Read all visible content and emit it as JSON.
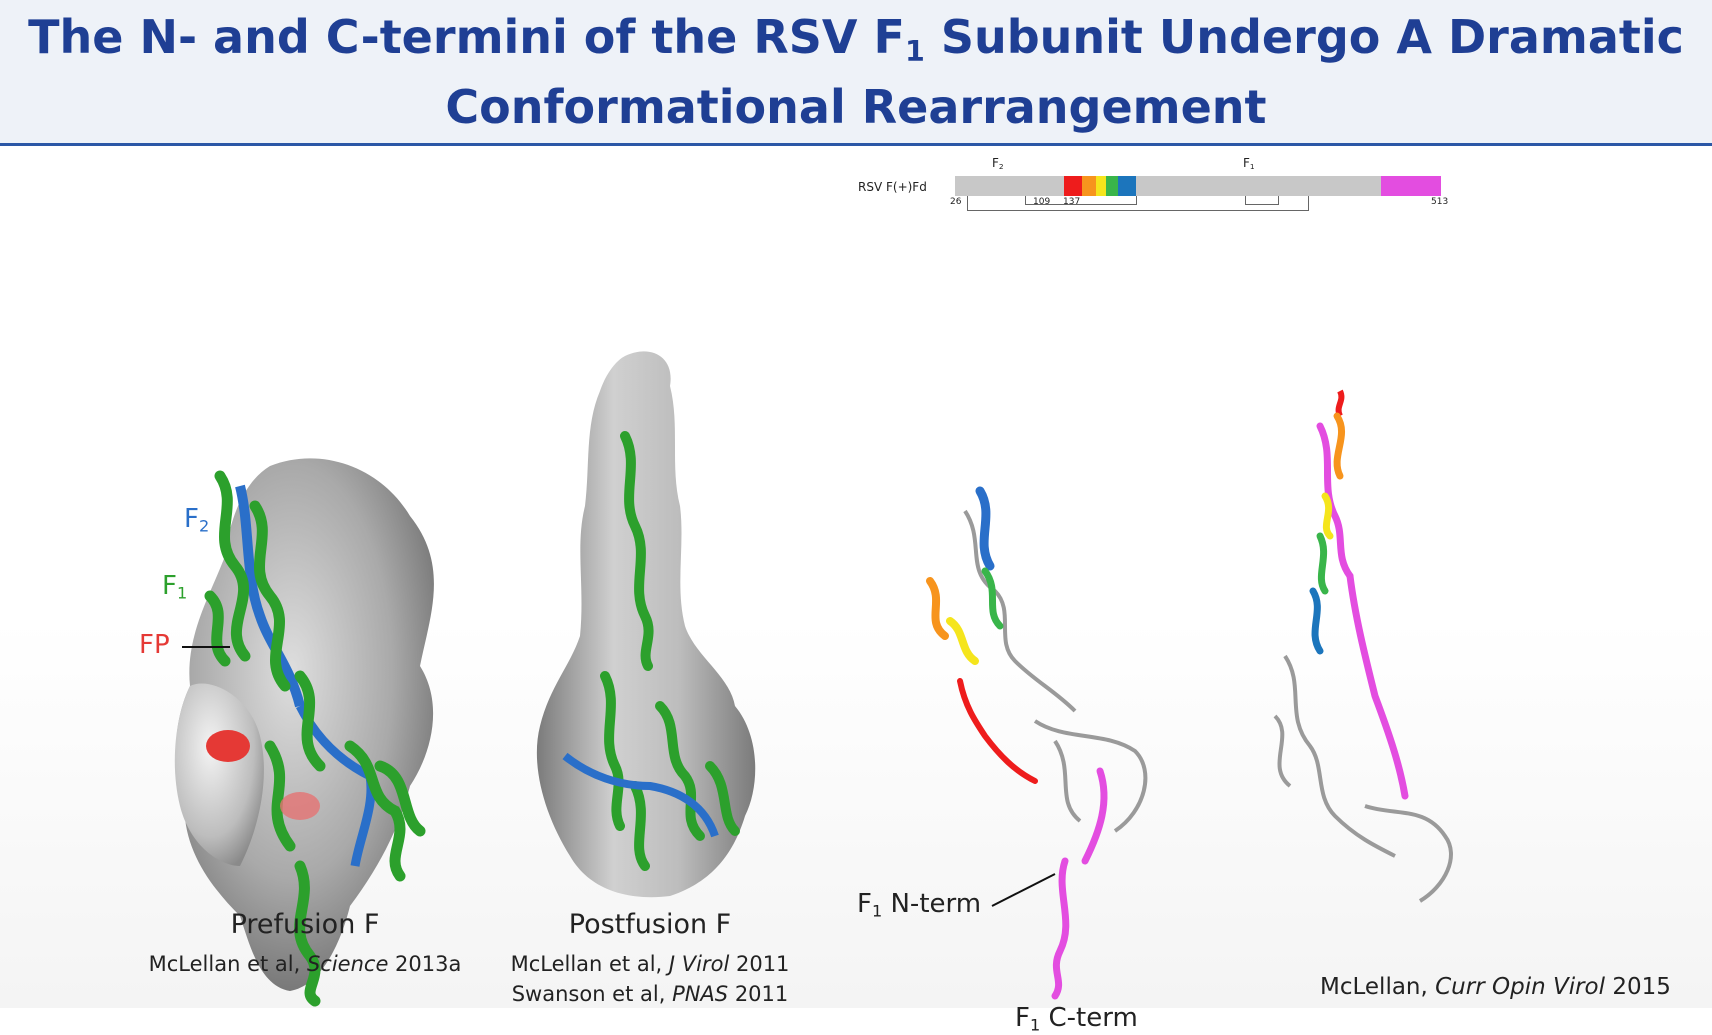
{
  "title": {
    "line1_a": "The N- and C-termini of the RSV F",
    "line1_sub": "1",
    "line1_b": " Subunit Undergo A Dramatic",
    "line2": "Conformational Rearrangement"
  },
  "prefusion": {
    "caption": "Prefusion F",
    "ref_authors": "McLellan et al, ",
    "ref_journal": "Science",
    "ref_year": " 2013a",
    "label_f2": "F",
    "label_f2_sub": "2",
    "label_f1": "F",
    "label_f1_sub": "1",
    "label_fp": "FP"
  },
  "postfusion": {
    "caption": "Postfusion F",
    "ref1_authors": "McLellan et al, ",
    "ref1_journal": "J Virol",
    "ref1_year": " 2011",
    "ref2_authors": "Swanson et al, ",
    "ref2_journal": "PNAS",
    "ref2_year": " 2011"
  },
  "domain_map": {
    "construct_label": "RSV F(+)Fd",
    "f2_label": "F",
    "f2_sub": "2",
    "f1_label": "F",
    "f1_sub": "1",
    "pos_start": "26",
    "pos_109": "109",
    "pos_137": "137",
    "pos_end": "513",
    "rainbow_colors": [
      "#ee1c1c",
      "#f7941d",
      "#f5e51c",
      "#39b54a",
      "#1c75bc"
    ],
    "c_term_color": "#e34de0"
  },
  "monomer": {
    "n_term_label": "F",
    "n_term_sub": "1",
    "n_term_text": " N-term",
    "c_term_label": "F",
    "c_term_sub": "1",
    "c_term_text": " C-term"
  },
  "footer_ref": {
    "authors": "McLellan, ",
    "journal": "Curr Opin Virol",
    "year": " 2015"
  },
  "colors": {
    "title": "#1f3f94",
    "header_bg": "#eef2f8",
    "header_rule": "#2b57a6",
    "f1_green": "#2ca02c",
    "f2_blue": "#2a6fc9",
    "fp_red": "#e53935",
    "surface_grey": "#a9a9a9"
  }
}
